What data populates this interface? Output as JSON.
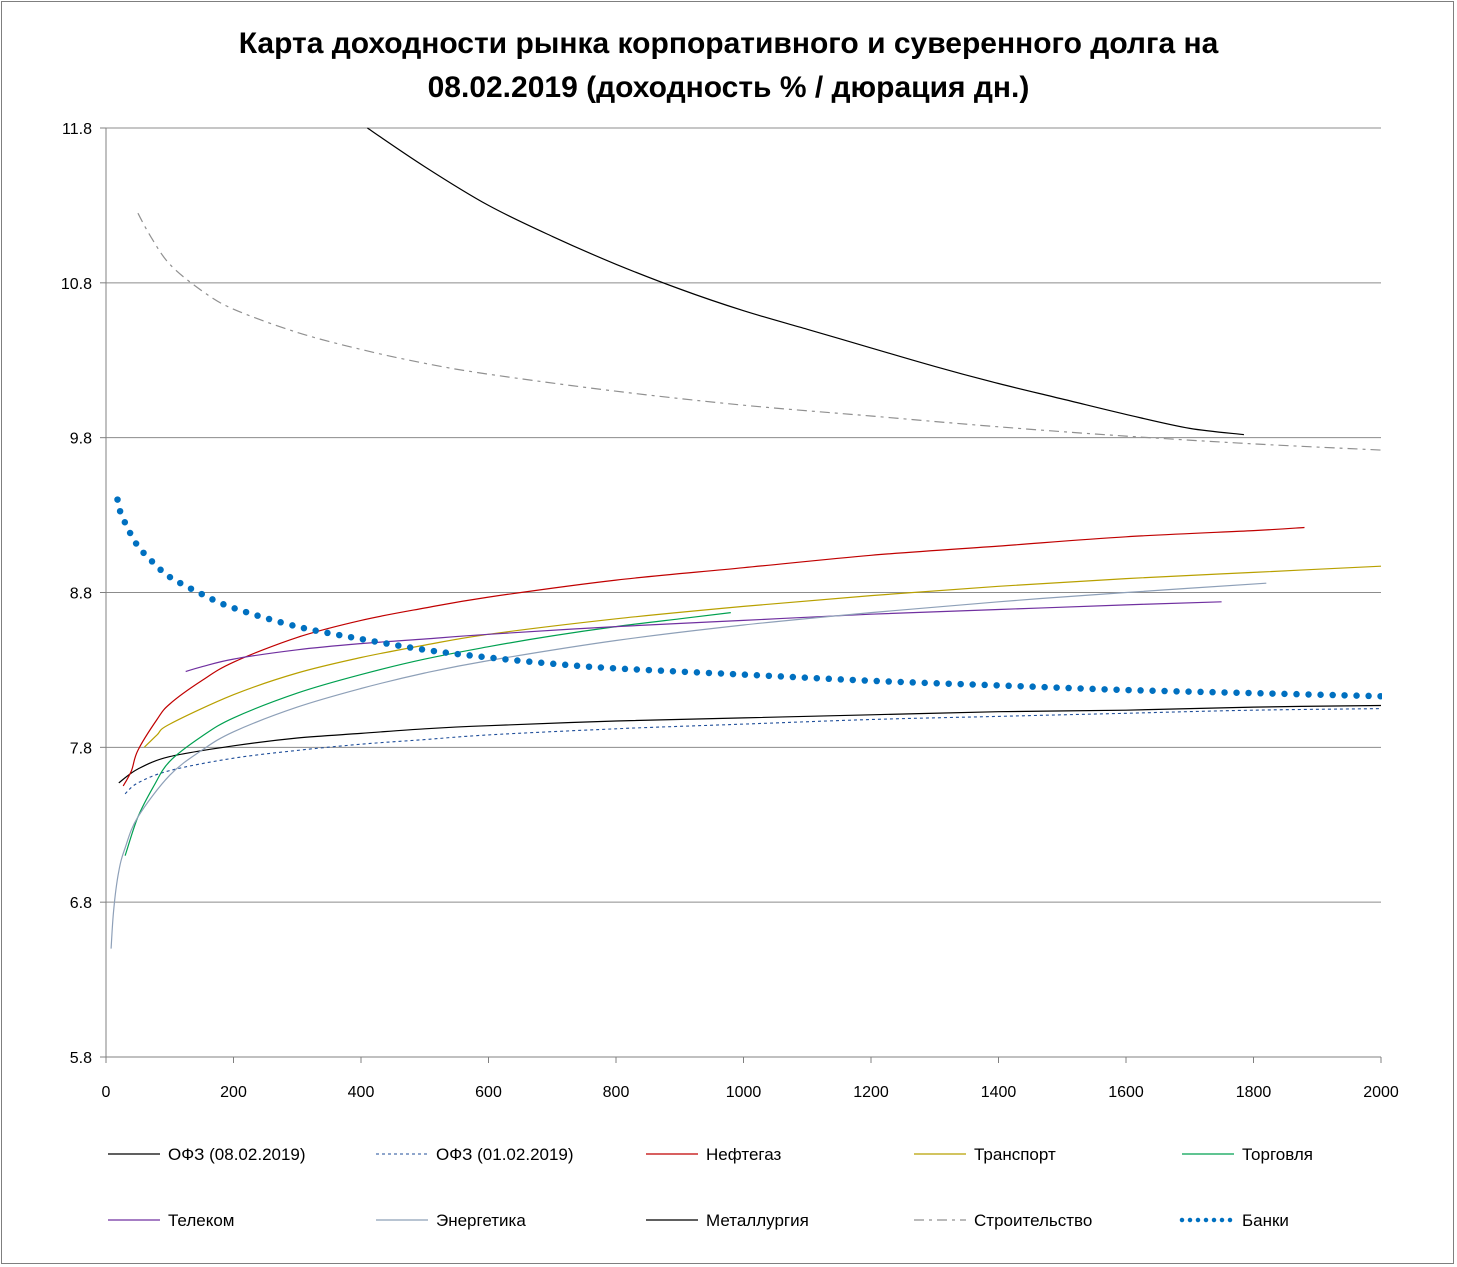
{
  "chart_data": {
    "type": "line",
    "title_lines": [
      "Карта доходности рынка корпоративного и суверенного долга на",
      "08.02.2019 (доходность % / дюрация дн.)"
    ],
    "xlabel": "",
    "ylabel": "",
    "xlim": [
      0,
      2000
    ],
    "ylim": [
      5.8,
      11.8
    ],
    "x_ticks": [
      "0",
      "200",
      "400",
      "600",
      "800",
      "1000",
      "1200",
      "1400",
      "1600",
      "1800",
      "2000"
    ],
    "y_ticks": [
      "5.8",
      "6.8",
      "7.8",
      "8.8",
      "9.8",
      "10.8",
      "11.8"
    ],
    "grid": "horizontal",
    "legend_position": "bottom",
    "series": [
      {
        "name": "ОФЗ (08.02.2019)",
        "color": "#000000",
        "style": "solid",
        "points": [
          [
            20,
            7.57
          ],
          [
            50,
            7.66
          ],
          [
            100,
            7.74
          ],
          [
            200,
            7.81
          ],
          [
            300,
            7.86
          ],
          [
            400,
            7.89
          ],
          [
            500,
            7.92
          ],
          [
            600,
            7.94
          ],
          [
            800,
            7.97
          ],
          [
            1000,
            7.99
          ],
          [
            1200,
            8.01
          ],
          [
            1400,
            8.03
          ],
          [
            1600,
            8.04
          ],
          [
            1800,
            8.06
          ],
          [
            2000,
            8.07
          ]
        ]
      },
      {
        "name": "ОФЗ (01.02.2019)",
        "color": "#1f4e9a",
        "style": "dotted",
        "points": [
          [
            30,
            7.5
          ],
          [
            50,
            7.57
          ],
          [
            100,
            7.65
          ],
          [
            200,
            7.73
          ],
          [
            300,
            7.78
          ],
          [
            400,
            7.82
          ],
          [
            500,
            7.85
          ],
          [
            600,
            7.88
          ],
          [
            800,
            7.92
          ],
          [
            1000,
            7.95
          ],
          [
            1200,
            7.98
          ],
          [
            1400,
            8.0
          ],
          [
            1600,
            8.02
          ],
          [
            1800,
            8.04
          ],
          [
            2000,
            8.05
          ]
        ]
      },
      {
        "name": "Нефтегаз",
        "color": "#c00000",
        "style": "solid",
        "points": [
          [
            27,
            7.55
          ],
          [
            40,
            7.65
          ],
          [
            50,
            7.78
          ],
          [
            80,
            7.98
          ],
          [
            100,
            8.08
          ],
          [
            150,
            8.23
          ],
          [
            200,
            8.35
          ],
          [
            300,
            8.51
          ],
          [
            400,
            8.62
          ],
          [
            500,
            8.7
          ],
          [
            600,
            8.77
          ],
          [
            800,
            8.88
          ],
          [
            1000,
            8.96
          ],
          [
            1200,
            9.04
          ],
          [
            1400,
            9.1
          ],
          [
            1600,
            9.16
          ],
          [
            1800,
            9.2
          ],
          [
            1880,
            9.22
          ]
        ]
      },
      {
        "name": "Транспорт",
        "color": "#b8a000",
        "style": "solid",
        "points": [
          [
            60,
            7.8
          ],
          [
            80,
            7.88
          ],
          [
            100,
            7.95
          ],
          [
            200,
            8.14
          ],
          [
            300,
            8.28
          ],
          [
            400,
            8.38
          ],
          [
            500,
            8.46
          ],
          [
            600,
            8.53
          ],
          [
            800,
            8.63
          ],
          [
            1000,
            8.71
          ],
          [
            1200,
            8.78
          ],
          [
            1400,
            8.84
          ],
          [
            1600,
            8.89
          ],
          [
            1800,
            8.93
          ],
          [
            2000,
            8.97
          ]
        ]
      },
      {
        "name": "Торговля",
        "color": "#00a050",
        "style": "solid",
        "points": [
          [
            30,
            7.1
          ],
          [
            50,
            7.35
          ],
          [
            75,
            7.55
          ],
          [
            100,
            7.71
          ],
          [
            150,
            7.87
          ],
          [
            200,
            7.99
          ],
          [
            300,
            8.15
          ],
          [
            400,
            8.27
          ],
          [
            500,
            8.37
          ],
          [
            600,
            8.45
          ],
          [
            700,
            8.52
          ],
          [
            800,
            8.58
          ],
          [
            900,
            8.63
          ],
          [
            980,
            8.67
          ]
        ]
      },
      {
        "name": "Телеком",
        "color": "#7030a0",
        "style": "solid",
        "points": [
          [
            125,
            8.29
          ],
          [
            150,
            8.32
          ],
          [
            200,
            8.37
          ],
          [
            300,
            8.43
          ],
          [
            400,
            8.47
          ],
          [
            500,
            8.5
          ],
          [
            600,
            8.53
          ],
          [
            800,
            8.58
          ],
          [
            1000,
            8.62
          ],
          [
            1200,
            8.66
          ],
          [
            1400,
            8.69
          ],
          [
            1600,
            8.72
          ],
          [
            1750,
            8.74
          ]
        ]
      },
      {
        "name": "Энергетика",
        "color": "#8ea0b8",
        "style": "solid",
        "points": [
          [
            8,
            6.5
          ],
          [
            12,
            6.75
          ],
          [
            20,
            7.0
          ],
          [
            30,
            7.15
          ],
          [
            50,
            7.35
          ],
          [
            100,
            7.62
          ],
          [
            150,
            7.78
          ],
          [
            200,
            7.9
          ],
          [
            300,
            8.06
          ],
          [
            400,
            8.18
          ],
          [
            500,
            8.28
          ],
          [
            600,
            8.36
          ],
          [
            800,
            8.49
          ],
          [
            1000,
            8.59
          ],
          [
            1200,
            8.67
          ],
          [
            1400,
            8.74
          ],
          [
            1600,
            8.8
          ],
          [
            1820,
            8.86
          ]
        ]
      },
      {
        "name": "Металлургия",
        "color": "#000000",
        "style": "solid",
        "points": [
          [
            410,
            11.8
          ],
          [
            500,
            11.55
          ],
          [
            600,
            11.3
          ],
          [
            700,
            11.1
          ],
          [
            800,
            10.92
          ],
          [
            900,
            10.76
          ],
          [
            1000,
            10.62
          ],
          [
            1100,
            10.5
          ],
          [
            1200,
            10.38
          ],
          [
            1300,
            10.26
          ],
          [
            1400,
            10.15
          ],
          [
            1500,
            10.05
          ],
          [
            1600,
            9.95
          ],
          [
            1700,
            9.86
          ],
          [
            1785,
            9.82
          ]
        ]
      },
      {
        "name": "Строительство",
        "color": "#909090",
        "style": "dashdot",
        "points": [
          [
            50,
            11.25
          ],
          [
            70,
            11.1
          ],
          [
            100,
            10.92
          ],
          [
            150,
            10.75
          ],
          [
            200,
            10.63
          ],
          [
            300,
            10.48
          ],
          [
            400,
            10.37
          ],
          [
            500,
            10.28
          ],
          [
            600,
            10.21
          ],
          [
            800,
            10.1
          ],
          [
            1000,
            10.01
          ],
          [
            1200,
            9.94
          ],
          [
            1400,
            9.87
          ],
          [
            1600,
            9.81
          ],
          [
            1800,
            9.76
          ],
          [
            2000,
            9.72
          ]
        ]
      },
      {
        "name": "Банки",
        "color": "#0070c0",
        "style": "dots",
        "points": [
          [
            18,
            9.4
          ],
          [
            20,
            9.35
          ],
          [
            30,
            9.25
          ],
          [
            50,
            9.1
          ],
          [
            80,
            8.97
          ],
          [
            100,
            8.9
          ],
          [
            150,
            8.79
          ],
          [
            200,
            8.7
          ],
          [
            300,
            8.58
          ],
          [
            400,
            8.5
          ],
          [
            500,
            8.43
          ],
          [
            600,
            8.38
          ],
          [
            700,
            8.34
          ],
          [
            800,
            8.31
          ],
          [
            1000,
            8.27
          ],
          [
            1200,
            8.23
          ],
          [
            1400,
            8.2
          ],
          [
            1600,
            8.17
          ],
          [
            1800,
            8.15
          ],
          [
            2000,
            8.13
          ]
        ]
      }
    ]
  }
}
